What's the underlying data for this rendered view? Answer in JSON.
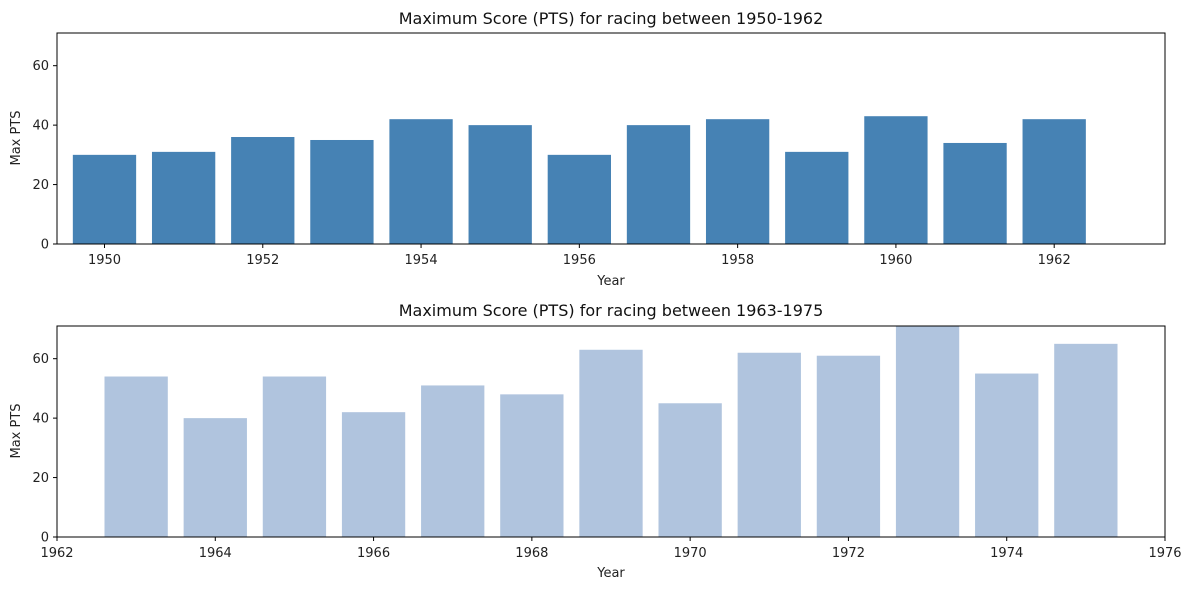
{
  "chart_data": [
    {
      "type": "bar",
      "title": "Maximum Score (PTS) for racing between 1950-1962",
      "xlabel": "Year",
      "ylabel": "Max PTS",
      "color": "#4682b4",
      "x": [
        1950,
        1951,
        1952,
        1953,
        1954,
        1955,
        1956,
        1957,
        1958,
        1959,
        1960,
        1961,
        1962
      ],
      "values": [
        30,
        31,
        36,
        35,
        42,
        40,
        30,
        40,
        42,
        31,
        43,
        34,
        42
      ],
      "xlim": [
        1949.4,
        1963.4
      ],
      "ylim": [
        0,
        71
      ],
      "xticks": [
        1950,
        1952,
        1954,
        1956,
        1958,
        1960,
        1962
      ],
      "yticks": [
        0,
        20,
        40,
        60
      ],
      "grid": false
    },
    {
      "type": "bar",
      "title": "Maximum Score (PTS) for racing between 1963-1975",
      "xlabel": "Year",
      "ylabel": "Max PTS",
      "color": "#b0c4de",
      "x": [
        1963,
        1964,
        1965,
        1966,
        1967,
        1968,
        1969,
        1970,
        1971,
        1972,
        1973,
        1974,
        1975
      ],
      "values": [
        54,
        40,
        54,
        42,
        51,
        48,
        63,
        45,
        62,
        61,
        72,
        55,
        65
      ],
      "xlim": [
        1962,
        1976
      ],
      "ylim": [
        0,
        71
      ],
      "xticks": [
        1962,
        1964,
        1966,
        1968,
        1970,
        1972,
        1974,
        1976
      ],
      "yticks": [
        0,
        20,
        40,
        60
      ],
      "grid": false
    }
  ]
}
